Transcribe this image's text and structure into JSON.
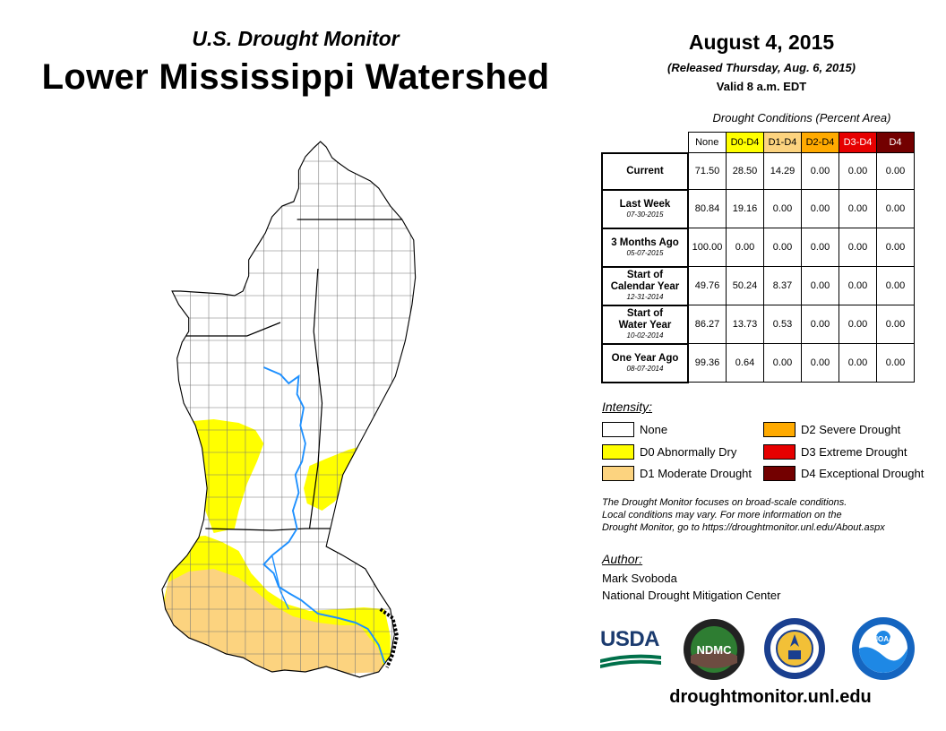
{
  "header": {
    "subtitle": "U.S. Drought Monitor",
    "title": "Lower Mississippi Watershed",
    "date": "August 4, 2015",
    "released": "(Released Thursday, Aug. 6, 2015)",
    "valid": "Valid 8 a.m. EDT"
  },
  "table": {
    "caption": "Drought Conditions (Percent Area)",
    "columns": [
      "None",
      "D0-D4",
      "D1-D4",
      "D2-D4",
      "D3-D4",
      "D4"
    ],
    "rows": [
      {
        "label": "Current",
        "date": "",
        "values": [
          "71.50",
          "28.50",
          "14.29",
          "0.00",
          "0.00",
          "0.00"
        ]
      },
      {
        "label": "Last Week",
        "date": "07-30-2015",
        "values": [
          "80.84",
          "19.16",
          "0.00",
          "0.00",
          "0.00",
          "0.00"
        ]
      },
      {
        "label": "3 Months Ago",
        "date": "05-07-2015",
        "values": [
          "100.00",
          "0.00",
          "0.00",
          "0.00",
          "0.00",
          "0.00"
        ]
      },
      {
        "label": "Start of Calendar Year",
        "label_line1": "Start of",
        "label_line2": "Calendar Year",
        "date": "12-31-2014",
        "values": [
          "49.76",
          "50.24",
          "8.37",
          "0.00",
          "0.00",
          "0.00"
        ]
      },
      {
        "label": "Start of Water Year",
        "label_line1": "Start of",
        "label_line2": "Water Year",
        "date": "10-02-2014",
        "values": [
          "86.27",
          "13.73",
          "0.53",
          "0.00",
          "0.00",
          "0.00"
        ]
      },
      {
        "label": "One Year Ago",
        "date": "08-07-2014",
        "values": [
          "99.36",
          "0.64",
          "0.00",
          "0.00",
          "0.00",
          "0.00"
        ]
      }
    ]
  },
  "legend": {
    "title": "Intensity:",
    "items": [
      {
        "label": "None",
        "color": "#ffffff"
      },
      {
        "label": "D0 Abnormally Dry",
        "color": "#ffff00"
      },
      {
        "label": "D1 Moderate Drought",
        "color": "#fcd37f"
      },
      {
        "label": "D2 Severe Drought",
        "color": "#ffaa00"
      },
      {
        "label": "D3 Extreme Drought",
        "color": "#e60000"
      },
      {
        "label": "D4 Exceptional Drought",
        "color": "#730000"
      }
    ]
  },
  "note": {
    "line1": "The Drought Monitor focuses on broad-scale conditions.",
    "line2": "Local conditions may vary. For more information on the",
    "line3": "Drought Monitor, go to https://droughtmonitor.unl.edu/About.aspx"
  },
  "author": {
    "label": "Author:",
    "name": "Mark Svoboda",
    "org": "National Drought Mitigation Center"
  },
  "logos": {
    "usda": "USDA",
    "ndmc": "NDMC",
    "noaa": "NOAA"
  },
  "website": "droughtmonitor.unl.edu",
  "map_colors": {
    "river": "#1e90ff",
    "d0": "#ffff00",
    "d1": "#fcd37f"
  }
}
